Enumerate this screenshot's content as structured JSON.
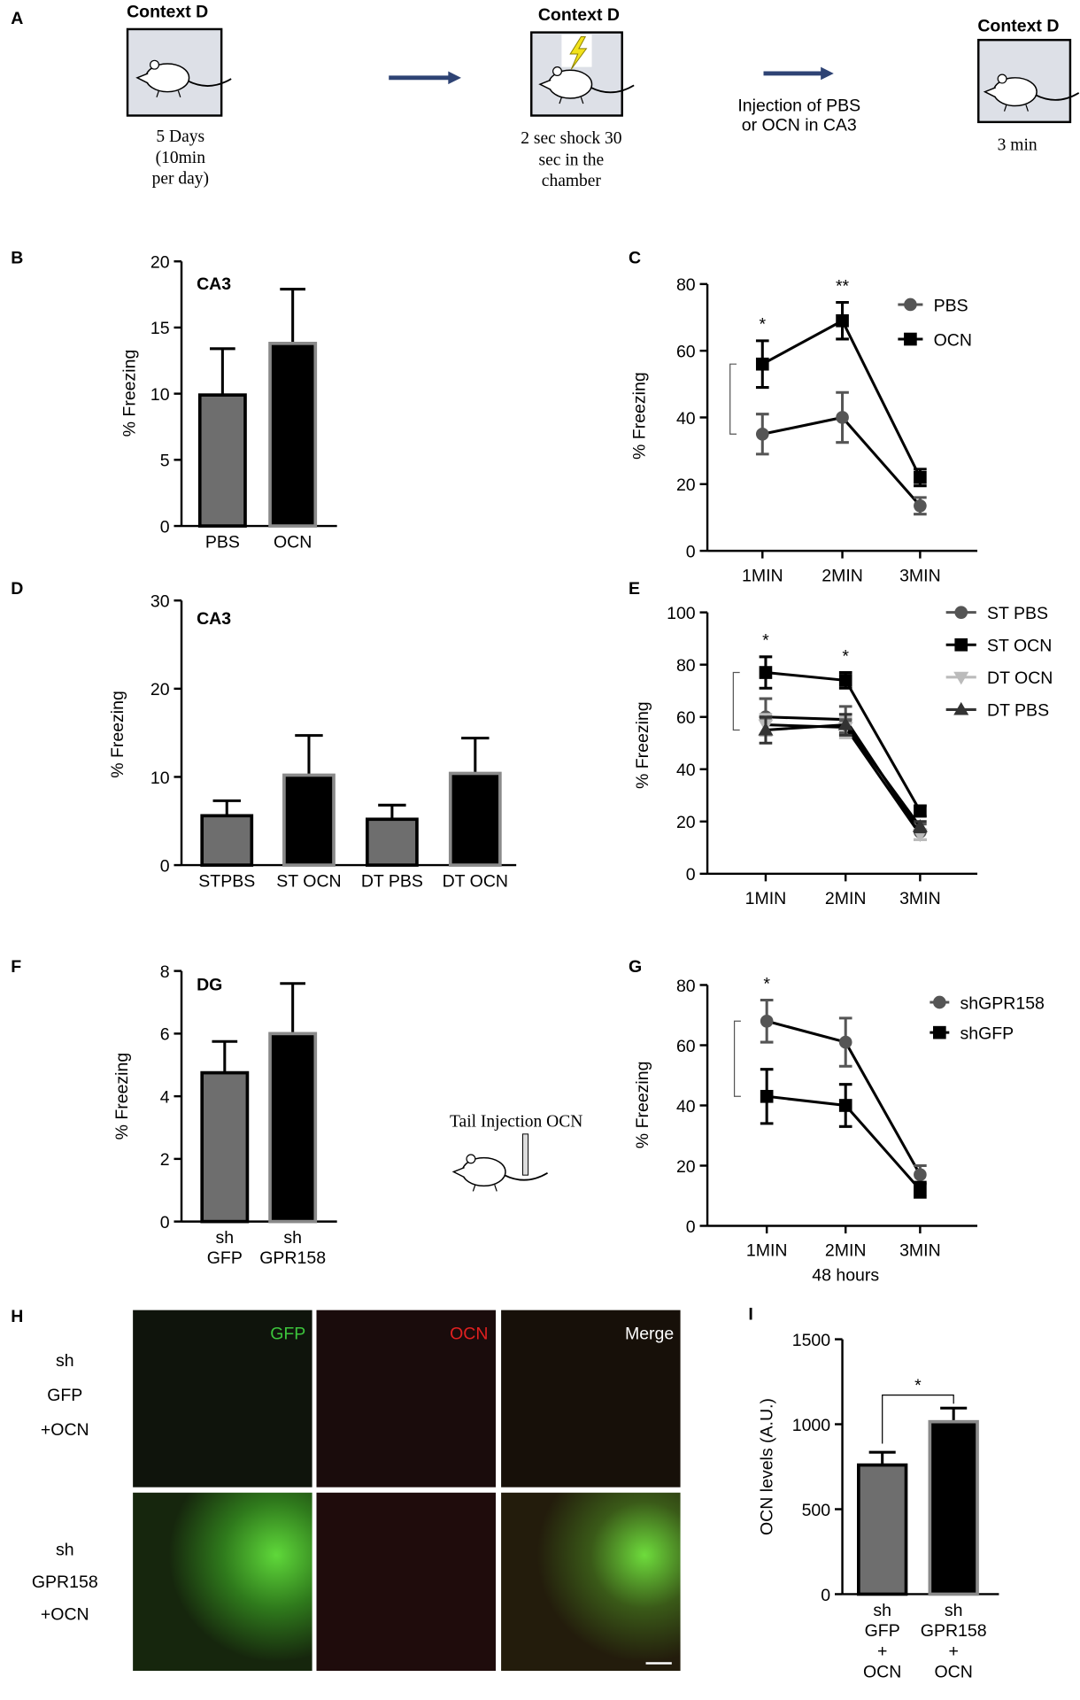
{
  "panel_a": {
    "label": "A",
    "steps": [
      {
        "title": "Context D",
        "caption": [
          "5 Days",
          "(10min",
          "per day)"
        ]
      },
      {
        "title": "Context D",
        "caption": [
          "2 sec shock 30",
          "sec in the",
          "chamber"
        ]
      },
      {
        "title": "Context D",
        "caption": [
          "3 min"
        ]
      }
    ],
    "arrow_text": [
      "Injection of PBS",
      "or OCN in CA3"
    ]
  },
  "panel_h": {
    "label": "H",
    "columns": [
      "GFP",
      "OCN",
      "Merge"
    ],
    "rows": [
      [
        "sh",
        "GFP",
        "+OCN"
      ],
      [
        "sh",
        "GPR158",
        "+OCN"
      ]
    ]
  },
  "inset_label": "Tail Injection OCN",
  "chart_data": [
    {
      "type": "bar",
      "panel": "B",
      "title": "CA3",
      "ylabel": "% Freezing",
      "categories": [
        "PBS",
        "OCN"
      ],
      "values": [
        9.9,
        13.8
      ],
      "errors": [
        3.5,
        4.1
      ],
      "colors": [
        "#6e6e6e",
        "#000000"
      ],
      "edge_colors": [
        "#000000",
        "#8a8a8a"
      ],
      "ylim": [
        0,
        20
      ],
      "yticks": [
        0,
        5,
        10,
        15,
        20
      ]
    },
    {
      "type": "line",
      "panel": "C",
      "ylabel": "% Freezing",
      "categories": [
        "1MIN",
        "2MIN",
        "3MIN"
      ],
      "annotations": [
        "*",
        "**",
        null
      ],
      "series": [
        {
          "name": "PBS",
          "color": "#555555",
          "marker": "circle",
          "values": [
            35,
            40,
            13.5
          ],
          "errors": [
            6,
            7.5,
            2.5
          ]
        },
        {
          "name": "OCN",
          "color": "#000000",
          "marker": "square",
          "values": [
            56,
            69,
            22
          ],
          "errors": [
            7,
            5.5,
            2.5
          ]
        }
      ],
      "ylim": [
        0,
        80
      ],
      "yticks": [
        0,
        20,
        40,
        60,
        80
      ]
    },
    {
      "type": "bar",
      "panel": "D",
      "title": "CA3",
      "ylabel": "% Freezing",
      "categories": [
        "STPBS",
        "ST OCN",
        "DT PBS",
        "DT OCN"
      ],
      "values": [
        5.6,
        10.2,
        5.2,
        10.4
      ],
      "errors": [
        1.7,
        4.5,
        1.6,
        4
      ],
      "colors": [
        "#6e6e6e",
        "#000000",
        "#6e6e6e",
        "#000000"
      ],
      "edge_colors": [
        "#000000",
        "#8a8a8a",
        "#000000",
        "#8a8a8a"
      ],
      "ylim": [
        0,
        30
      ],
      "yticks": [
        0,
        10,
        20,
        30
      ]
    },
    {
      "type": "line",
      "panel": "E",
      "ylabel": "% Freezing",
      "categories": [
        "1MIN",
        "2MIN",
        "3MIN"
      ],
      "annotations": [
        "*",
        "*",
        null
      ],
      "series": [
        {
          "name": "ST PBS",
          "color": "#555555",
          "marker": "circle",
          "values": [
            60,
            59,
            16
          ],
          "errors": [
            7,
            5,
            3
          ]
        },
        {
          "name": "ST OCN",
          "color": "#000000",
          "marker": "square",
          "values": [
            77,
            74,
            24
          ],
          "errors": [
            6,
            3,
            2
          ]
        },
        {
          "name": "DT OCN",
          "color": "#bbbbbb",
          "marker": "triangle-down",
          "values": [
            57,
            56,
            15
          ],
          "errors": [
            4,
            4,
            2
          ]
        },
        {
          "name": "DT PBS",
          "color": "#333333",
          "marker": "triangle",
          "values": [
            55,
            57,
            18
          ],
          "errors": [
            5,
            4,
            2
          ]
        }
      ],
      "ylim": [
        0,
        100
      ],
      "yticks": [
        0,
        20,
        40,
        60,
        80,
        100
      ]
    },
    {
      "type": "bar",
      "panel": "F",
      "title": "DG",
      "ylabel": "% Freezing",
      "categories": [
        [
          "sh",
          "GFP"
        ],
        [
          "sh",
          "GPR158"
        ]
      ],
      "values": [
        4.75,
        6.0
      ],
      "errors": [
        1.0,
        1.6
      ],
      "colors": [
        "#6e6e6e",
        "#000000"
      ],
      "edge_colors": [
        "#000000",
        "#8a8a8a"
      ],
      "ylim": [
        0,
        8
      ],
      "yticks": [
        0,
        2,
        4,
        6,
        8
      ]
    },
    {
      "type": "line",
      "panel": "G",
      "ylabel": "% Freezing",
      "xlabel": "48 hours",
      "categories": [
        "1MIN",
        "2MIN",
        "3MIN"
      ],
      "annotations": [
        "*",
        null,
        null
      ],
      "series": [
        {
          "name": "shGPR158",
          "color": "#555555",
          "marker": "circle",
          "values": [
            68,
            61,
            17
          ],
          "errors": [
            7,
            8,
            3
          ]
        },
        {
          "name": "shGFP",
          "color": "#000000",
          "marker": "square",
          "values": [
            43,
            40,
            12
          ],
          "errors": [
            9,
            7,
            2.5
          ]
        }
      ],
      "ylim": [
        0,
        80
      ],
      "yticks": [
        0,
        20,
        40,
        60,
        80
      ]
    },
    {
      "type": "bar",
      "panel": "I",
      "ylabel": "OCN levels (A.U.)",
      "annotation": "*",
      "categories": [
        [
          "sh",
          "GFP",
          "+",
          "OCN"
        ],
        [
          "sh",
          "GPR158",
          "+",
          "OCN"
        ]
      ],
      "values": [
        760,
        1015
      ],
      "errors": [
        75,
        80
      ],
      "colors": [
        "#6e6e6e",
        "#000000"
      ],
      "edge_colors": [
        "#000000",
        "#8a8a8a"
      ],
      "ylim": [
        0,
        1500
      ],
      "yticks": [
        0,
        500,
        1000,
        1500
      ]
    }
  ]
}
